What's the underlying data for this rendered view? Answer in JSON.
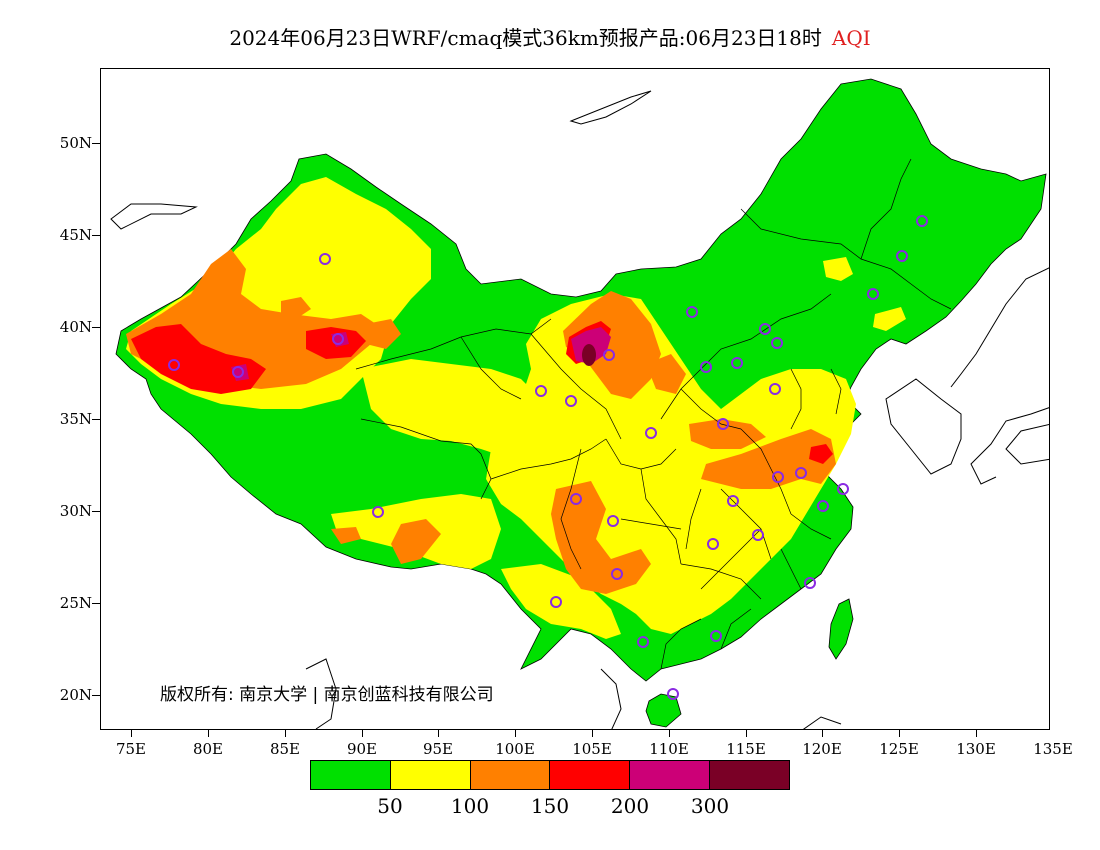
{
  "title": {
    "main": "2024年06月23日WRF/cmaq模式36km预报产品:06月23日18时",
    "variable": "AQI"
  },
  "axes": {
    "lat_labels": [
      "50N",
      "45N",
      "40N",
      "35N",
      "30N",
      "25N",
      "20N"
    ],
    "lon_labels": [
      "75E",
      "80E",
      "85E",
      "90E",
      "95E",
      "100E",
      "105E",
      "110E",
      "115E",
      "120E",
      "125E",
      "130E",
      "135E"
    ]
  },
  "copyright": "版权所有: 南京大学 | 南京创蓝科技有限公司",
  "legend": {
    "colors": [
      "#00e000",
      "#ffff00",
      "#ff8000",
      "#ff0000",
      "#cc0077",
      "#7a0026"
    ],
    "labels": [
      "50",
      "100",
      "150",
      "200",
      "300"
    ]
  },
  "colors": {
    "good": "#00e000",
    "moderate": "#ffff00",
    "usg": "#ff8000",
    "unhealthy": "#ff0000",
    "very_unhealthy": "#cc0077",
    "hazardous": "#7a0026",
    "station_marker": "#8a2be2"
  }
}
